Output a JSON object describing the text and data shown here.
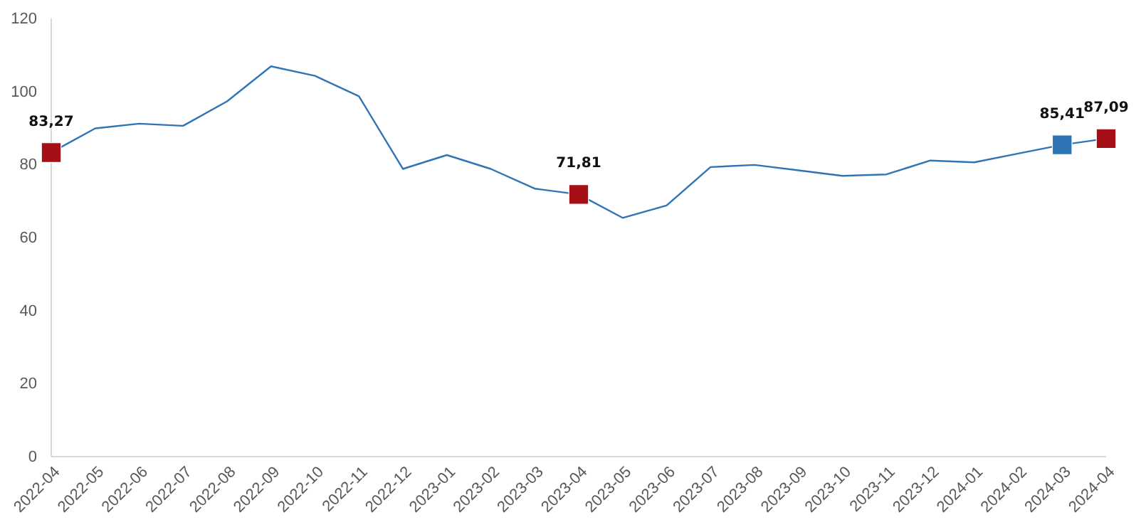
{
  "chart_data": {
    "type": "line",
    "categories": [
      "2022-04",
      "2022-05",
      "2022-06",
      "2022-07",
      "2022-08",
      "2022-09",
      "2022-10",
      "2022-11",
      "2022-12",
      "2023-01",
      "2023-02",
      "2023-03",
      "2023-04",
      "2023-05",
      "2023-06",
      "2023-07",
      "2023-08",
      "2023-09",
      "2023-10",
      "2023-11",
      "2023-12",
      "2024-01",
      "2024-02",
      "2024-03",
      "2024-04"
    ],
    "series": [
      {
        "color": "#2e75b6",
        "values": [
          83.3,
          89.9,
          91.2,
          90.6,
          97.3,
          106.9,
          104.3,
          98.7,
          78.8,
          82.6,
          78.8,
          73.4,
          71.8,
          65.4,
          68.8,
          79.3,
          79.9,
          78.4,
          76.9,
          77.3,
          81.1,
          80.6,
          83.0,
          85.4,
          87.1
        ]
      },
      {
        "type": "scatter",
        "marker": "square",
        "values": [
          83.27,
          null,
          null,
          null,
          null,
          null,
          null,
          null,
          null,
          null,
          null,
          null,
          71.81,
          null,
          null,
          null,
          null,
          null,
          null,
          null,
          null,
          null,
          null,
          85.41,
          87.09
        ],
        "colors": [
          "#a50f15",
          null,
          null,
          null,
          null,
          null,
          null,
          null,
          null,
          null,
          null,
          null,
          "#a50f15",
          null,
          null,
          null,
          null,
          null,
          null,
          null,
          null,
          null,
          null,
          "#2e75b6",
          "#a50f15"
        ],
        "value_labels": [
          "83,27",
          null,
          null,
          null,
          null,
          null,
          null,
          null,
          null,
          null,
          null,
          null,
          "71,81",
          null,
          null,
          null,
          null,
          null,
          null,
          null,
          null,
          null,
          null,
          "85,41",
          "87,09"
        ]
      }
    ],
    "ylim": [
      0,
      120
    ],
    "yticks": [
      0,
      20,
      40,
      60,
      80,
      100,
      120
    ],
    "grid": false
  }
}
